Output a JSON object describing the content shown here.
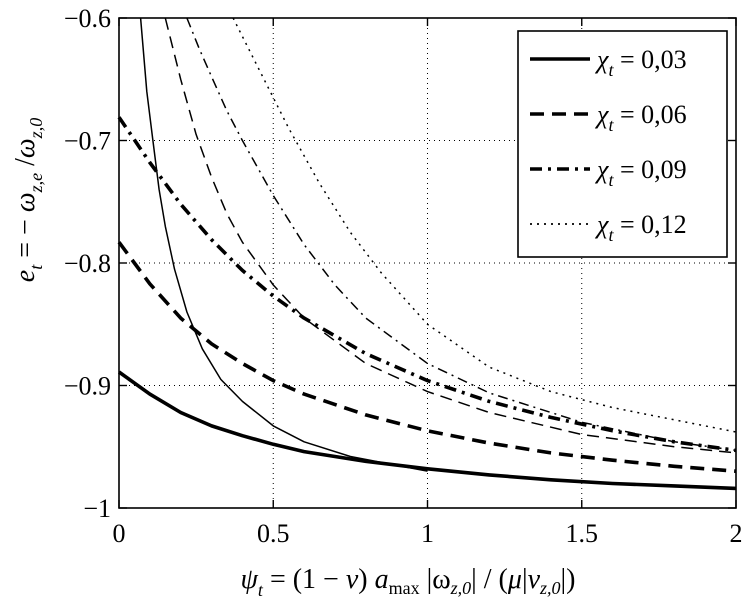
{
  "chart_data": {
    "type": "line",
    "xlabel": "ψt = (1 − ν) amax |ωz,0| / (μ|vz,0|)",
    "ylabel": "et = − ωz,e /ωz,0",
    "xlim": [
      0,
      2
    ],
    "ylim": [
      -1,
      -0.6
    ],
    "grid": true,
    "legend_position": "top-right",
    "x_ticks": [
      0,
      0.5,
      1,
      1.5,
      2
    ],
    "y_ticks": [
      -1,
      -0.9,
      -0.8,
      -0.7,
      -0.6
    ],
    "x_tick_labels": [
      "0",
      "0.5",
      "1",
      "1.5",
      "2"
    ],
    "y_tick_labels": [
      "−1",
      "−0.9",
      "−0.8",
      "−0.7",
      "−0.6"
    ],
    "series_note": "thick lines and thin lines drawn for each chi_t value",
    "series": [
      {
        "name": "χt = 0,03",
        "style": "solid",
        "legend_symbol": "χ",
        "legend_sub": "t",
        "legend_value": " = 0,03",
        "thick": {
          "x": [
            0,
            0.1,
            0.2,
            0.3,
            0.4,
            0.5,
            0.6,
            0.8,
            1.0,
            1.2,
            1.4,
            1.6,
            1.8,
            2.0
          ],
          "y": [
            -0.889,
            -0.907,
            -0.922,
            -0.933,
            -0.941,
            -0.948,
            -0.954,
            -0.962,
            -0.968,
            -0.973,
            -0.977,
            -0.98,
            -0.982,
            -0.984
          ]
        },
        "thin": {
          "x": [
            0.07,
            0.09,
            0.11,
            0.13,
            0.15,
            0.18,
            0.22,
            0.27,
            0.33,
            0.4,
            0.5,
            0.6,
            0.75,
            1.0
          ],
          "y": [
            -0.6,
            -0.66,
            -0.7,
            -0.74,
            -0.77,
            -0.805,
            -0.84,
            -0.87,
            -0.895,
            -0.913,
            -0.933,
            -0.946,
            -0.958,
            -0.97
          ]
        }
      },
      {
        "name": "χt = 0,06",
        "style": "dashed",
        "legend_symbol": "χ",
        "legend_sub": "t",
        "legend_value": " = 0,06",
        "thick": {
          "x": [
            0,
            0.1,
            0.2,
            0.3,
            0.4,
            0.5,
            0.6,
            0.8,
            1.0,
            1.2,
            1.4,
            1.6,
            1.8,
            2.0
          ],
          "y": [
            -0.783,
            -0.817,
            -0.845,
            -0.866,
            -0.882,
            -0.896,
            -0.907,
            -0.924,
            -0.937,
            -0.947,
            -0.955,
            -0.961,
            -0.966,
            -0.97
          ]
        },
        "thin": {
          "x": [
            0.15,
            0.2,
            0.25,
            0.3,
            0.35,
            0.4,
            0.5,
            0.6,
            0.8,
            1.0,
            1.2,
            1.5,
            1.8,
            2.0
          ],
          "y": [
            -0.6,
            -0.65,
            -0.695,
            -0.73,
            -0.76,
            -0.783,
            -0.818,
            -0.845,
            -0.882,
            -0.905,
            -0.922,
            -0.94,
            -0.95,
            -0.955
          ]
        }
      },
      {
        "name": "χt = 0,09",
        "style": "dashdot",
        "legend_symbol": "χ",
        "legend_sub": "t",
        "legend_value": " = 0,09",
        "thick": {
          "x": [
            0,
            0.1,
            0.2,
            0.3,
            0.4,
            0.5,
            0.6,
            0.8,
            1.0,
            1.2,
            1.4,
            1.6,
            1.8,
            2.0
          ],
          "y": [
            -0.681,
            -0.718,
            -0.752,
            -0.781,
            -0.806,
            -0.827,
            -0.845,
            -0.874,
            -0.896,
            -0.913,
            -0.926,
            -0.937,
            -0.946,
            -0.953
          ]
        },
        "thin": {
          "x": [
            0.22,
            0.26,
            0.3,
            0.35,
            0.4,
            0.5,
            0.6,
            0.7,
            0.8,
            1.0,
            1.2,
            1.5,
            1.8,
            2.0
          ],
          "y": [
            -0.6,
            -0.625,
            -0.648,
            -0.676,
            -0.7,
            -0.745,
            -0.785,
            -0.818,
            -0.845,
            -0.882,
            -0.906,
            -0.93,
            -0.946,
            -0.953
          ]
        }
      },
      {
        "name": "χt = 0,12",
        "style": "dotted",
        "legend_symbol": "χ",
        "legend_sub": "t",
        "legend_value": " = 0,12",
        "thick": {
          "x": [],
          "y": []
        },
        "thin": {
          "x": [
            0.37,
            0.45,
            0.55,
            0.65,
            0.75,
            0.85,
            1.0,
            1.2,
            1.4,
            1.6,
            1.8,
            2.0
          ],
          "y": [
            -0.6,
            -0.64,
            -0.69,
            -0.735,
            -0.775,
            -0.808,
            -0.85,
            -0.885,
            -0.905,
            -0.918,
            -0.928,
            -0.938
          ]
        }
      }
    ]
  }
}
